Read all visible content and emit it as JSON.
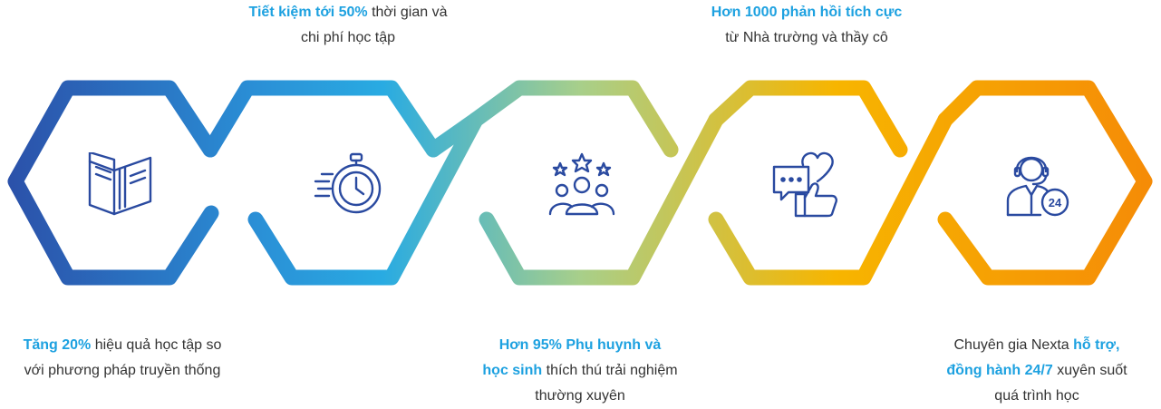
{
  "colors": {
    "highlight": "#1da1e0",
    "text": "#333333",
    "icon": "#2a4aa0",
    "gradient": [
      "#2b4fa8",
      "#2a8fd6",
      "#29abe2",
      "#a8cf8a",
      "#f7b500",
      "#f58a07"
    ]
  },
  "steps": [
    {
      "icon": "book-icon",
      "lines": [
        {
          "hl": "Tăng 20%",
          "text": " hiệu quả học tập so"
        },
        {
          "hl": "",
          "text": "với phương pháp truyền thống"
        }
      ]
    },
    {
      "icon": "stopwatch-icon",
      "lines": [
        {
          "hl": "Tiết kiệm tới 50%",
          "text": " thời gian và"
        },
        {
          "hl": "",
          "text": "chi phí học tập"
        }
      ]
    },
    {
      "icon": "rating-people-icon",
      "lines": [
        {
          "hl": "Hơn 95% Phụ huynh và",
          "text": ""
        },
        {
          "hl": "học sinh",
          "text": " thích thú trải nghiệm"
        },
        {
          "hl": "",
          "text": "thường xuyên"
        }
      ]
    },
    {
      "icon": "feedback-like-icon",
      "lines": [
        {
          "hl": "Hơn 1000 phản hồi tích cực",
          "text": ""
        },
        {
          "hl": "",
          "text": "từ Nhà trường và thầy cô"
        }
      ]
    },
    {
      "icon": "support-24-icon",
      "lines": [
        {
          "hl": "",
          "text": "Chuyên gia Nexta ",
          "hl2": "hỗ trợ,"
        },
        {
          "hl": "đồng hành 24/7",
          "text": " xuyên suốt"
        },
        {
          "hl": "",
          "text": "quá trình học"
        }
      ]
    }
  ]
}
